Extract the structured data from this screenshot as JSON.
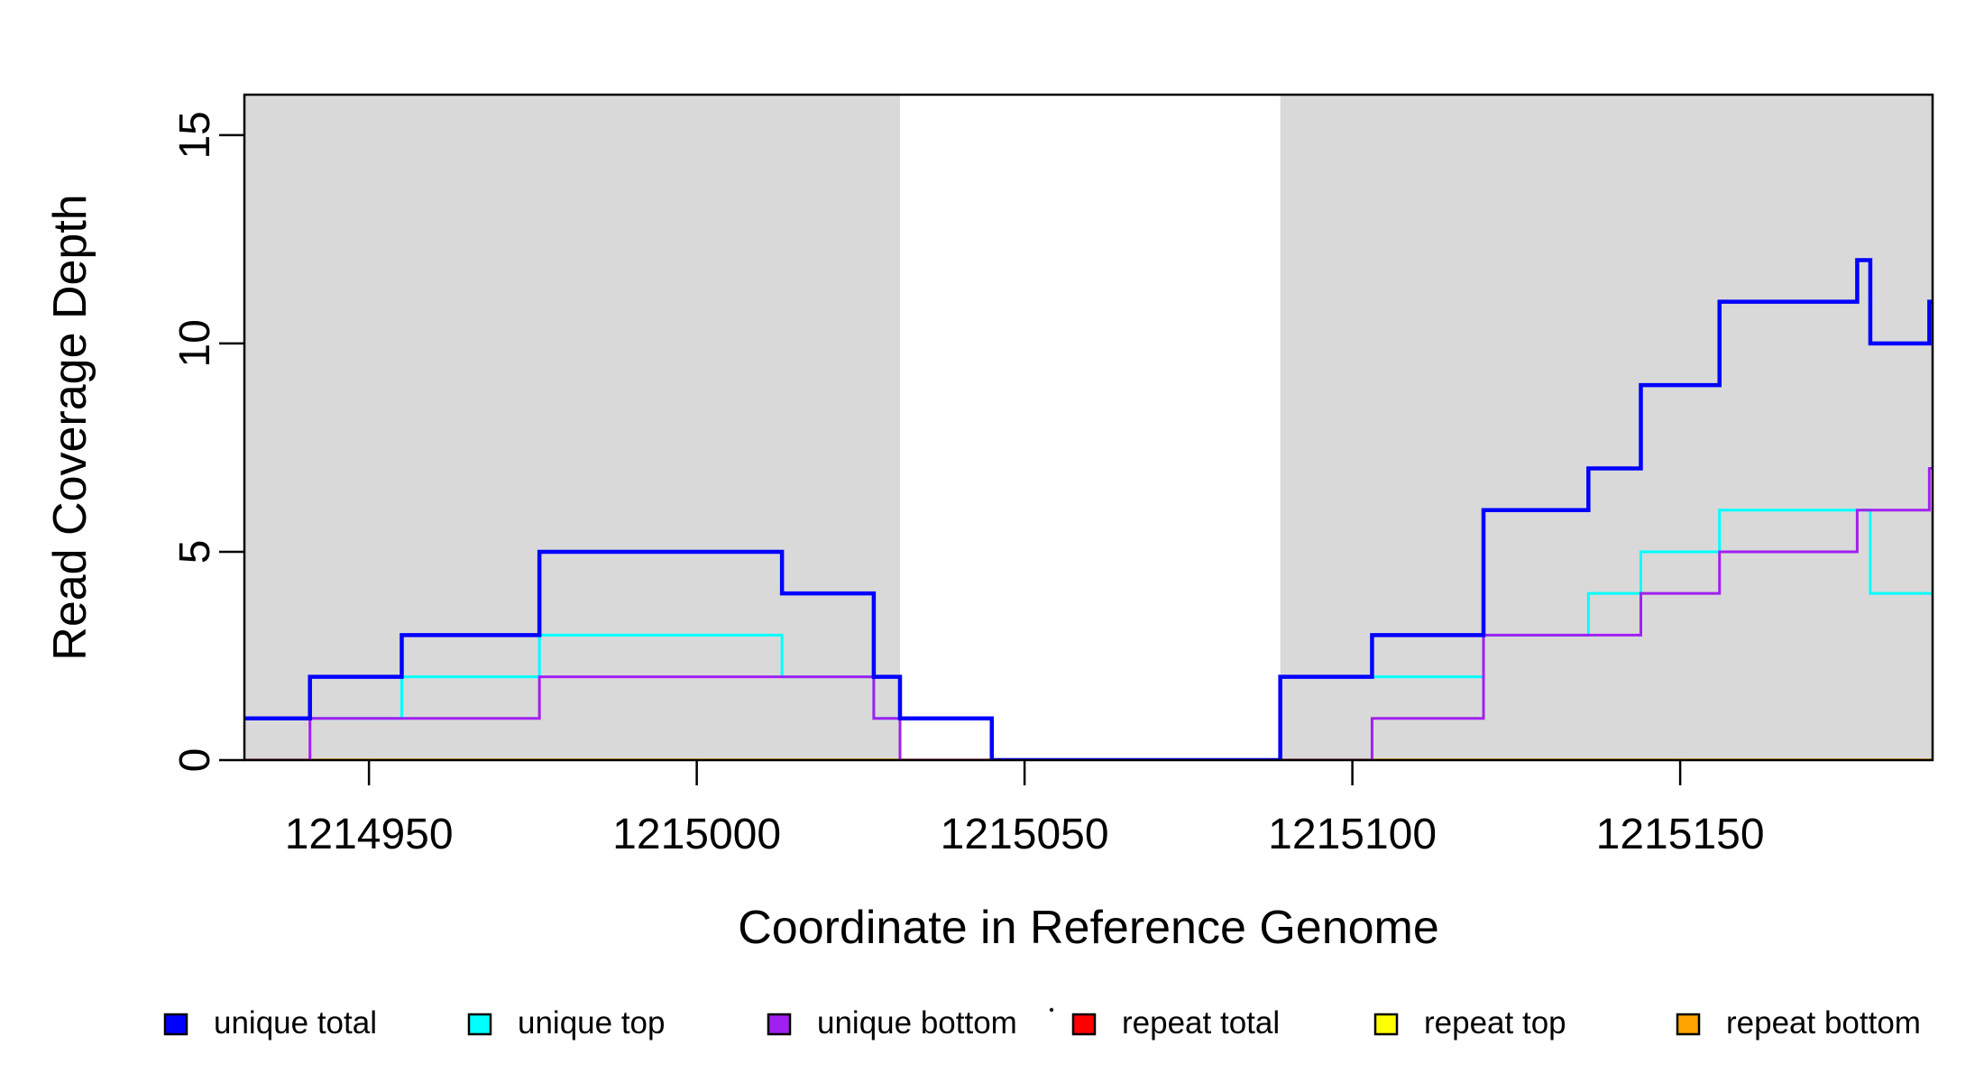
{
  "chart_data": {
    "type": "line",
    "subtype": "step-post",
    "title": "",
    "xlabel": "Coordinate in Reference Genome",
    "ylabel": "Read Coverage Depth",
    "xlim": [
      1214931,
      1215188.5
    ],
    "ylim": [
      0,
      15.97
    ],
    "grid": false,
    "legend_position": "bottom",
    "x_ticks": [
      1214950,
      1215000,
      1215050,
      1215100,
      1215150
    ],
    "x_tick_labels": [
      "1214950",
      "1215000",
      "1215050",
      "1215100",
      "1215150"
    ],
    "y_ticks": [
      0,
      5,
      10,
      15
    ],
    "y_tick_labels": [
      "0",
      "5",
      "10",
      "15"
    ],
    "shaded_regions": [
      {
        "x0": 1214931,
        "x1": 1215031,
        "color": "#D9D9D9"
      },
      {
        "x0": 1215089,
        "x1": 1215188.5,
        "color": "#D9D9D9"
      }
    ],
    "series": [
      {
        "name": "unique total",
        "color": "#0000FF",
        "width": 4.5,
        "points": [
          [
            1214931,
            1
          ],
          [
            1214941,
            2
          ],
          [
            1214955,
            3
          ],
          [
            1214976,
            5
          ],
          [
            1215013,
            4
          ],
          [
            1215027,
            2
          ],
          [
            1215031,
            1
          ],
          [
            1215045,
            0
          ],
          [
            1215089,
            2
          ],
          [
            1215103,
            3
          ],
          [
            1215120,
            6
          ],
          [
            1215136,
            7
          ],
          [
            1215144,
            9
          ],
          [
            1215156,
            11
          ],
          [
            1215177,
            12
          ],
          [
            1215179,
            10
          ],
          [
            1215188,
            11
          ]
        ]
      },
      {
        "name": "unique top",
        "color": "#00FFFF",
        "width": 3,
        "points": [
          [
            1214931,
            1
          ],
          [
            1214955,
            2
          ],
          [
            1214976,
            3
          ],
          [
            1215013,
            2
          ],
          [
            1215027,
            1
          ],
          [
            1215045,
            0
          ],
          [
            1215089,
            2
          ],
          [
            1215120,
            3
          ],
          [
            1215136,
            4
          ],
          [
            1215144,
            5
          ],
          [
            1215156,
            6
          ],
          [
            1215179,
            4
          ]
        ]
      },
      {
        "name": "unique bottom",
        "color": "#A020F0",
        "width": 3,
        "points": [
          [
            1214931,
            0
          ],
          [
            1214941,
            1
          ],
          [
            1214976,
            2
          ],
          [
            1215027,
            1
          ],
          [
            1215031,
            0
          ],
          [
            1215103,
            1
          ],
          [
            1215120,
            3
          ],
          [
            1215144,
            4
          ],
          [
            1215156,
            5
          ],
          [
            1215177,
            6
          ],
          [
            1215188,
            7
          ]
        ]
      },
      {
        "name": "repeat total",
        "color": "#FF0000",
        "width": 2.5,
        "points": [
          [
            1214931,
            0
          ]
        ]
      },
      {
        "name": "repeat top",
        "color": "#FFFF00",
        "width": 2.5,
        "points": [
          [
            1214931,
            0
          ]
        ]
      },
      {
        "name": "repeat bottom",
        "color": "#FFA500",
        "width": 3.5,
        "points": [
          [
            1214931,
            0
          ]
        ]
      }
    ],
    "draw_order": [
      "repeat total",
      "repeat top",
      "repeat bottom",
      "unique top",
      "unique bottom",
      "unique total"
    ]
  },
  "legend": {
    "items": [
      {
        "label": "unique total",
        "color": "#0000FF"
      },
      {
        "label": "unique top",
        "color": "#00FFFF"
      },
      {
        "label": "unique bottom",
        "color": "#A020F0"
      },
      {
        "label": "repeat total",
        "color": "#FF0000"
      },
      {
        "label": "repeat top",
        "color": "#FFFF00"
      },
      {
        "label": "repeat bottom",
        "color": "#FFA500"
      }
    ]
  }
}
